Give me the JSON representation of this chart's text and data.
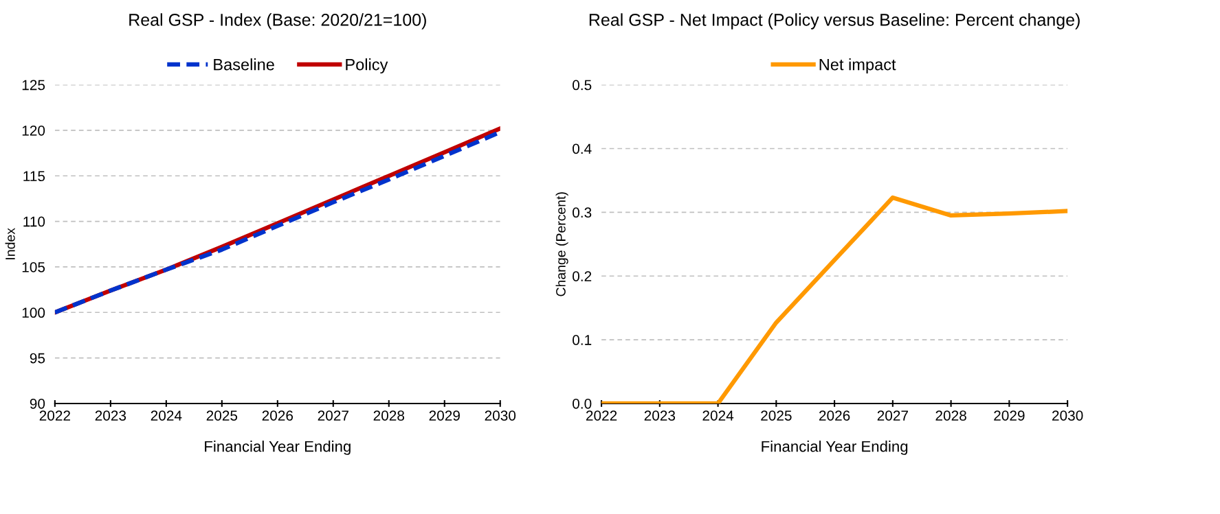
{
  "chart_data": [
    {
      "type": "line",
      "title": "Real GSP - Index (Base: 2020/21=100)",
      "xlabel": "Financial Year Ending",
      "ylabel": "Index",
      "x": [
        2022,
        2023,
        2024,
        2025,
        2026,
        2027,
        2028,
        2029,
        2030
      ],
      "series": [
        {
          "name": "Baseline",
          "color": "#0033cc",
          "line_style": "dashed",
          "values": [
            100,
            102.4,
            104.7,
            106.9,
            109.5,
            112.1,
            114.6,
            117.2,
            119.8
          ]
        },
        {
          "name": "Policy",
          "color": "#c00000",
          "line_style": "solid",
          "values": [
            100,
            102.4,
            104.7,
            107.2,
            109.8,
            112.4,
            115.0,
            117.6,
            120.2
          ]
        }
      ],
      "xlim": [
        2022,
        2030
      ],
      "xticks": [
        2022,
        2023,
        2024,
        2025,
        2026,
        2027,
        2028,
        2029,
        2030
      ],
      "ylim": [
        90,
        125
      ],
      "yticks": [
        90,
        95,
        100,
        105,
        110,
        115,
        120,
        125
      ],
      "grid": "y",
      "legend": "top",
      "marker": "none"
    },
    {
      "type": "line",
      "title": "Real GSP - Net Impact (Policy versus Baseline: Percent change)",
      "xlabel": "Financial Year Ending",
      "ylabel": "Change (Percent)",
      "x": [
        2022,
        2023,
        2024,
        2025,
        2026,
        2027,
        2028,
        2029,
        2030
      ],
      "series": [
        {
          "name": "Net impact",
          "color": "#ff9900",
          "line_style": "solid",
          "values": [
            0,
            0,
            0,
            0.127,
            0.225,
            0.323,
            0.295,
            0.298,
            0.302
          ]
        }
      ],
      "xlim": [
        2022,
        2030
      ],
      "xticks": [
        2022,
        2023,
        2024,
        2025,
        2026,
        2027,
        2028,
        2029,
        2030
      ],
      "ylim": [
        0,
        0.5
      ],
      "yticks": [
        {
          "value": 0,
          "label": "0.0"
        },
        0.1,
        0.2,
        0.3,
        0.4,
        0.5
      ],
      "grid": "y",
      "legend": "top",
      "marker": "none"
    }
  ]
}
